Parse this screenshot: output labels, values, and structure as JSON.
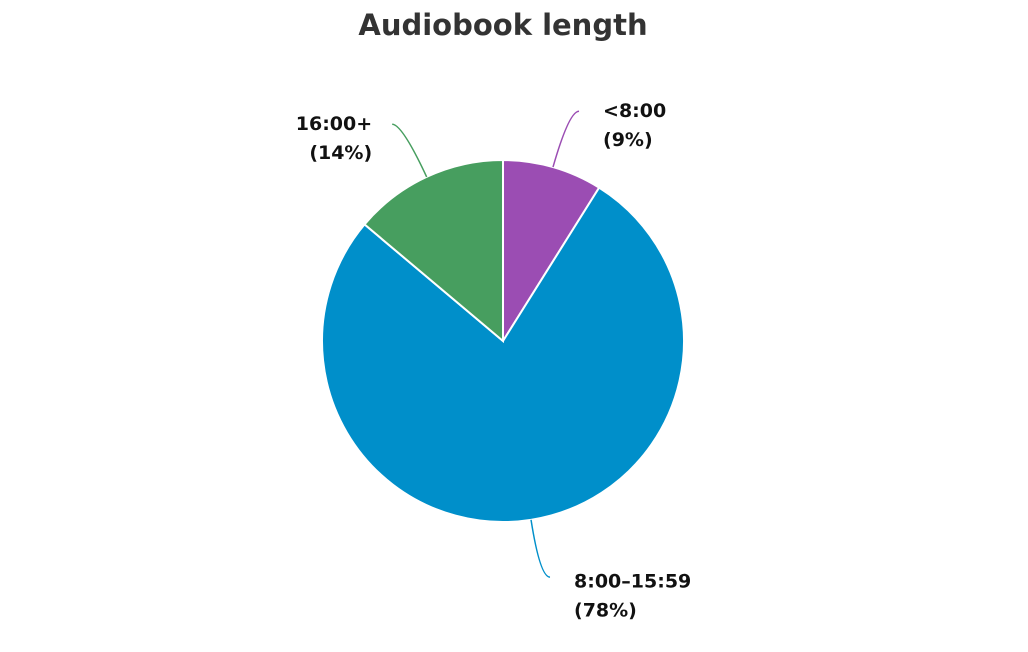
{
  "chart_data": {
    "type": "pie",
    "title": "Audiobook length",
    "categories": [
      "<8:00",
      "8:00–15:59",
      "16:00+"
    ],
    "values": [
      9,
      78,
      14
    ],
    "value_labels": [
      "(9%)",
      "(78%)",
      "(14%)"
    ],
    "colors": [
      "#9b4db3",
      "#008fca",
      "#479e5f"
    ]
  }
}
